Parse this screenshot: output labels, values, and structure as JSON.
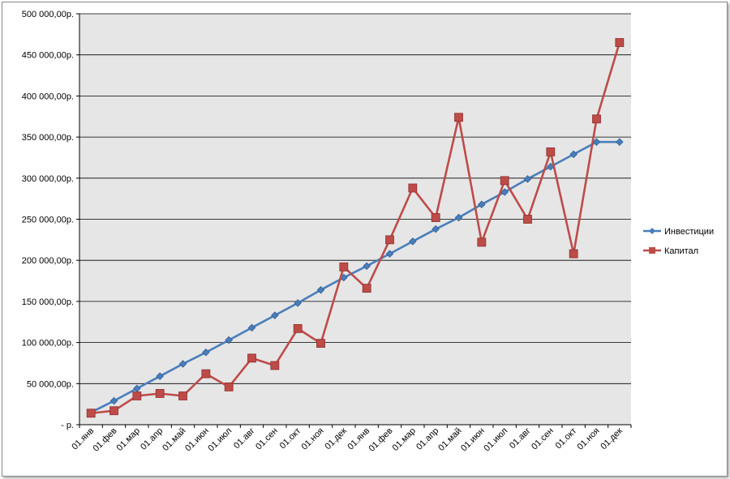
{
  "chart_data": {
    "type": "line",
    "title": "",
    "xlabel": "",
    "ylabel": "",
    "categories": [
      "01.янв",
      "01.фев",
      "01.мар",
      "01.апр",
      "01.май",
      "01.июн",
      "01.июл",
      "01.авг",
      "01.сен",
      "01.окт",
      "01.ноя",
      "01.дек",
      "01.янв",
      "01.фев",
      "01.мар",
      "01.апр",
      "01.май",
      "01.июн",
      "01.июл",
      "01.авг",
      "01.сен",
      "01.окт",
      "01.ноя",
      "01.дек"
    ],
    "ylim": [
      0,
      500000
    ],
    "yticks": [
      0,
      50000,
      100000,
      150000,
      200000,
      250000,
      300000,
      350000,
      400000,
      450000,
      500000
    ],
    "ytick_labels": [
      "- р.",
      "50 000,00р.",
      "100 000,00р.",
      "150 000,00р.",
      "200 000,00р.",
      "250 000,00р.",
      "300 000,00р.",
      "350 000,00р.",
      "400 000,00р.",
      "450 000,00р.",
      "500 000,00р."
    ],
    "grid": true,
    "legend_position": "right",
    "series": [
      {
        "name": "Инвестиции",
        "color": "#4a7ebb",
        "marker": "diamond",
        "values": [
          15000,
          29000,
          44000,
          59000,
          74000,
          88000,
          103000,
          118000,
          133000,
          148000,
          164000,
          179000,
          193000,
          208000,
          223000,
          238000,
          252000,
          268000,
          283000,
          299000,
          314000,
          329000,
          344000,
          344000
        ]
      },
      {
        "name": "Капитал",
        "color": "#be4b48",
        "marker": "square",
        "values": [
          14000,
          17000,
          35000,
          38000,
          35000,
          62000,
          46000,
          81000,
          72000,
          117000,
          99000,
          192000,
          166000,
          225000,
          288000,
          252000,
          374000,
          222000,
          297000,
          250000,
          332000,
          208000,
          372000,
          465000
        ]
      }
    ]
  }
}
